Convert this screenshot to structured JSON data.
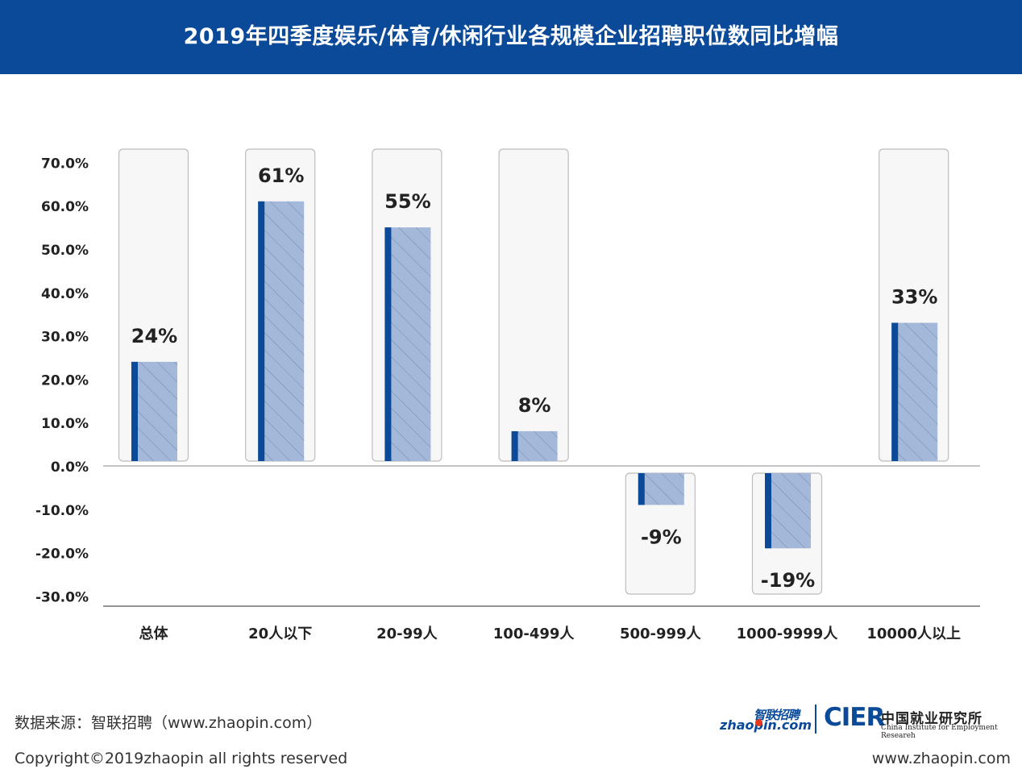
{
  "header": {
    "title": "2019年四季度娱乐/体育/休闲行业各规模企业招聘职位数同比增幅"
  },
  "chart_data": {
    "type": "bar",
    "categories": [
      "总体",
      "20人以下",
      "20-99人",
      "100-499人",
      "500-999人",
      "1000-9999人",
      "10000人以上"
    ],
    "values": [
      24,
      61,
      55,
      8,
      -9,
      -19,
      33
    ],
    "data_labels": [
      "24%",
      "61%",
      "55%",
      "8%",
      "-9%",
      "-19%",
      "33%"
    ],
    "yticks": [
      70,
      60,
      50,
      40,
      30,
      20,
      10,
      0,
      -10,
      -20,
      -30
    ],
    "ytick_labels": [
      "70.0%",
      "60.0%",
      "50.0%",
      "40.0%",
      "30.0%",
      "20.0%",
      "10.0%",
      "0.0%",
      "-10.0%",
      "-20.0%",
      "-30.0%"
    ],
    "ylim": [
      -30,
      70
    ],
    "grid": false,
    "colors": {
      "bar_fill": "#a4b9d9",
      "bar_accent": "#0b4a99",
      "hatch": "#6f88b3",
      "track_fill": "#f7f7f7",
      "track_border": "#bdbdbd",
      "axis": "#888888"
    }
  },
  "footer": {
    "source": "数据来源：智联招聘（www.zhaopin.com）",
    "copyright": "Copyright©2019zhaopin all rights reserved",
    "website": "www.zhaopin.com",
    "logo_zhaopin_en": "zhaopin.com",
    "logo_zhaopin_cn": "智联招聘",
    "logo_cier": "CIER",
    "logo_cier_cn": "中国就业研究所",
    "logo_cier_en": "China Institute for Employment Researeh"
  }
}
